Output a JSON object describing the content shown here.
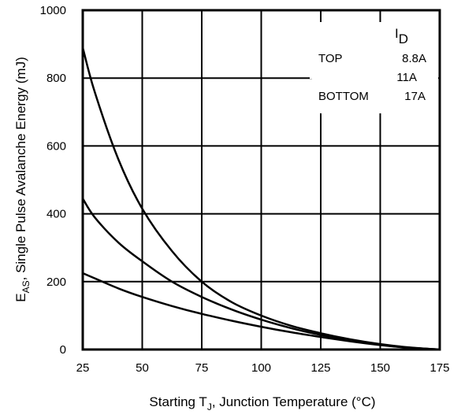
{
  "chart_data": {
    "type": "line",
    "x_axis": {
      "label_prefix": "Starting T",
      "label_sub": "J",
      "label_suffix": ", Junction Temperature (°C)",
      "range": [
        25,
        175
      ],
      "ticks": [
        25,
        50,
        75,
        100,
        125,
        150,
        175
      ]
    },
    "y_axis": {
      "label_prefix": "E",
      "label_sub": "AS",
      "label_suffix": ", Single Pulse Avalanche Energy (mJ)",
      "range": [
        0,
        1000
      ],
      "ticks": [
        0,
        200,
        400,
        600,
        800,
        1000
      ]
    },
    "grid": true,
    "legend": {
      "title_main": "I",
      "title_sub": "D",
      "placement": "top-right",
      "rows": [
        {
          "position": "TOP",
          "value": "8.8A"
        },
        {
          "position": "",
          "value": "11A"
        },
        {
          "position": "BOTTOM",
          "value": "17A"
        }
      ]
    },
    "series": [
      {
        "name": "8.8A",
        "x": [
          25,
          30,
          40,
          50,
          62.5,
          75,
          87.5,
          100,
          112.5,
          125,
          137.5,
          150,
          162.5,
          175
        ],
        "y": [
          890,
          760,
          560,
          415,
          290,
          200,
          140,
          100,
          70,
          48,
          30,
          16,
          6,
          0
        ]
      },
      {
        "name": "11A",
        "x": [
          25,
          30,
          40,
          50,
          62.5,
          75,
          87.5,
          100,
          112.5,
          125,
          137.5,
          150,
          162.5,
          175
        ],
        "y": [
          445,
          390,
          315,
          260,
          200,
          155,
          118,
          88,
          63,
          43,
          27,
          14,
          5,
          0
        ]
      },
      {
        "name": "17A",
        "x": [
          25,
          30,
          40,
          50,
          62.5,
          75,
          87.5,
          100,
          112.5,
          125,
          137.5,
          150,
          162.5,
          175
        ],
        "y": [
          225,
          210,
          180,
          155,
          128,
          105,
          85,
          67,
          51,
          37,
          24,
          13,
          5,
          0
        ]
      }
    ]
  }
}
